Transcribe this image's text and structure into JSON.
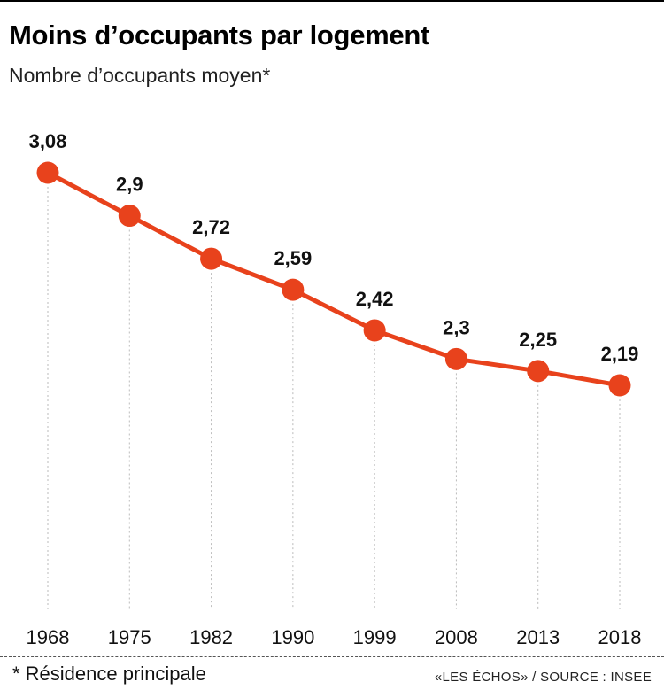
{
  "header": {
    "title": "Moins d’occupants par logement",
    "subtitle": "Nombre d’occupants moyen*"
  },
  "footer": {
    "footnote": "* Résidence principale",
    "source": "«LES ÉCHOS» / SOURCE : INSEE"
  },
  "colors": {
    "series": "#e8421c",
    "text": "#111111",
    "gridline": "#bbbbbb"
  },
  "chart_data": {
    "type": "line",
    "title": "Moins d’occupants par logement",
    "subtitle": "Nombre d’occupants moyen*",
    "x": [
      "1968",
      "1975",
      "1982",
      "1990",
      "1999",
      "2008",
      "2013",
      "2018"
    ],
    "values": [
      3.08,
      2.9,
      2.72,
      2.59,
      2.42,
      2.3,
      2.25,
      2.19
    ],
    "data_labels": [
      "3,08",
      "2,9",
      "2,72",
      "2,59",
      "2,42",
      "2,3",
      "2,25",
      "2,19"
    ],
    "ylim": [
      2.0,
      3.16
    ],
    "grid": "vertical dotted lines at each year",
    "legend": "none"
  }
}
